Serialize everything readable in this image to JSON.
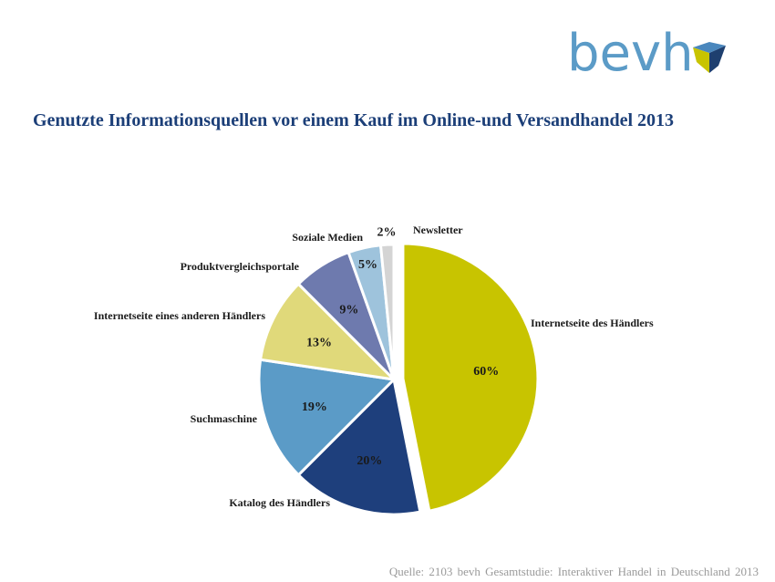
{
  "logo": {
    "text": "bevh",
    "text_color": "#5b9bc7",
    "mark_colors": [
      "#4a87bd",
      "#1e3f6f",
      "#c8c400"
    ]
  },
  "title": "Genutzte Informationsquellen vor einem Kauf im Online-und Versandhandel 2013",
  "source": "Quelle:  2103 bevh Gesamtstudie:  Interaktiver  Handel  in Deutschland  2013",
  "chart_data": {
    "type": "pie",
    "title": "Genutzte Informationsquellen vor einem Kauf im Online-und Versandhandel 2013",
    "slices": [
      {
        "label": "Internetseite des Händlers",
        "value": 60,
        "value_label": "60%",
        "color": "#c8c400"
      },
      {
        "label": "Katalog des Händlers",
        "value": 20,
        "value_label": "20%",
        "color": "#1e3f7c"
      },
      {
        "label": "Suchmaschine",
        "value": 19,
        "value_label": "19%",
        "color": "#5b9bc7"
      },
      {
        "label": "Internetseite eines anderen Händlers",
        "value": 13,
        "value_label": "13%",
        "color": "#e0d97a"
      },
      {
        "label": "Produktvergleichsportale",
        "value": 9,
        "value_label": "9%",
        "color": "#6e7aae"
      },
      {
        "label": "Soziale Medien",
        "value": 5,
        "value_label": "5%",
        "color": "#9ec3dc"
      },
      {
        "label": "Newsletter",
        "value": 2,
        "value_label": "2%",
        "color": "#d4d4d4"
      }
    ],
    "exploded_slice": "Internetseite des Händlers",
    "legend": "none"
  }
}
